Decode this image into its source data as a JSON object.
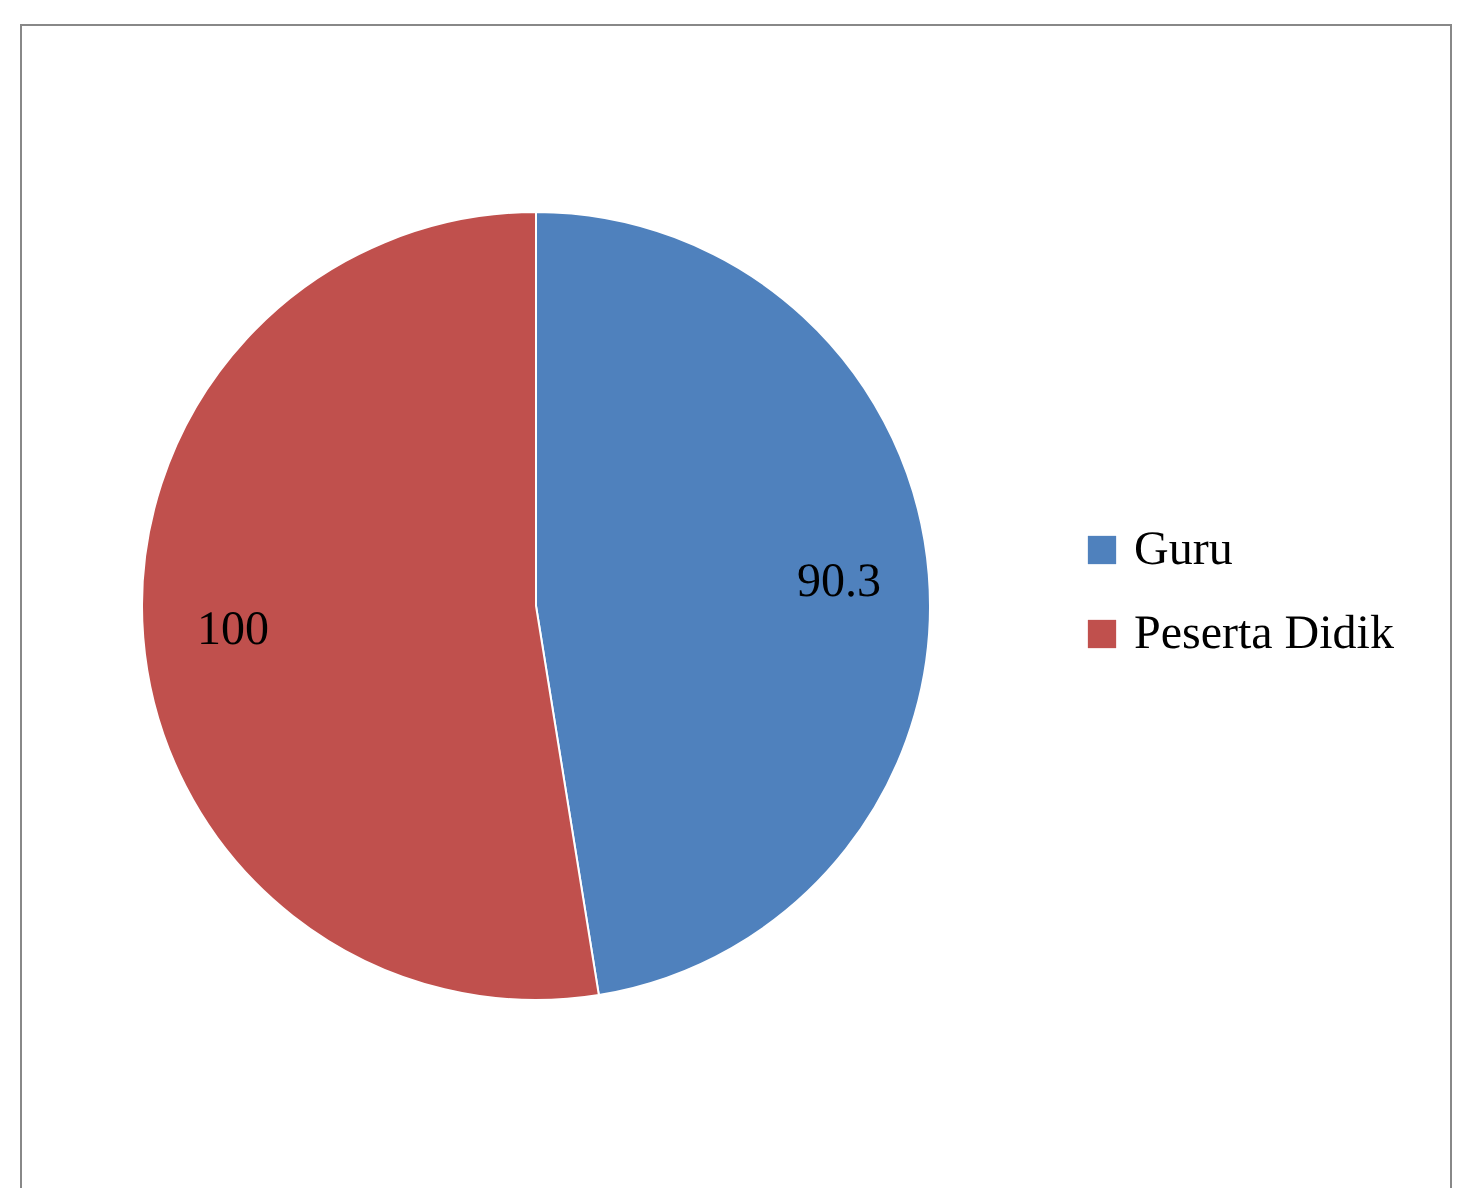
{
  "chart_data": {
    "type": "pie",
    "categories": [
      "Guru",
      "Peserta Didik"
    ],
    "values": [
      90.3,
      100
    ],
    "colors": [
      "#4f81bd",
      "#c0504d"
    ],
    "data_labels": true,
    "legend": "right"
  }
}
